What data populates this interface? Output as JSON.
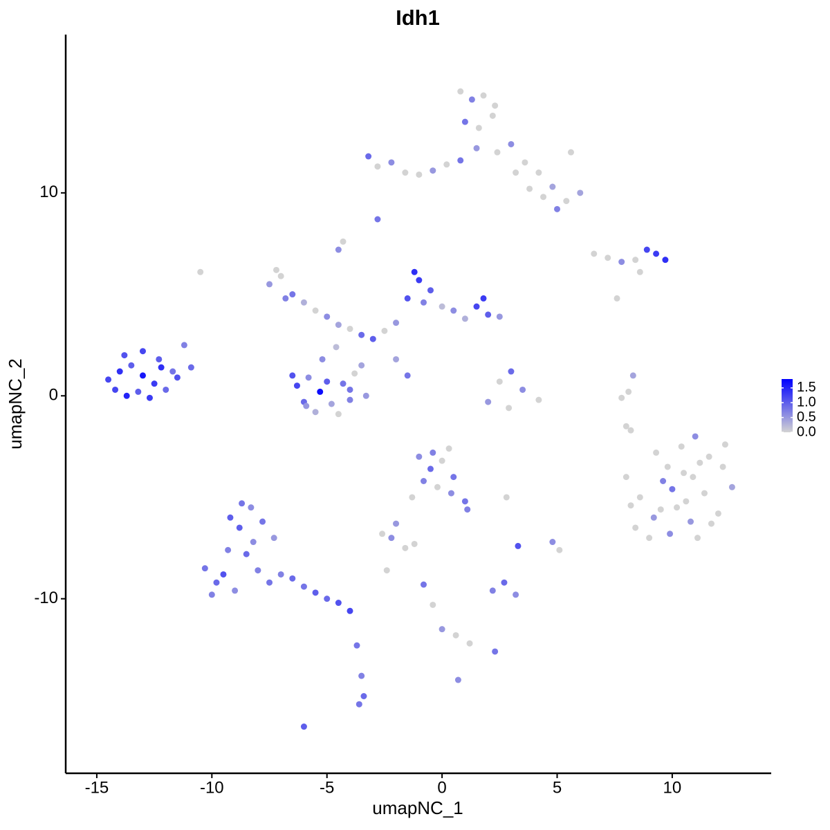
{
  "chart_data": {
    "type": "scatter",
    "title": "Idh1",
    "x_label": "umapNC_1",
    "y_label": "umapNC_2",
    "xlim": [
      -16.35,
      14.3
    ],
    "ylim": [
      -18.6,
      17.8
    ],
    "xticks": [
      -15,
      -10,
      -5,
      0,
      5,
      10
    ],
    "yticks": [
      -10,
      0,
      10
    ],
    "color_low": "#d3d3d3",
    "color_high": "#0000ff",
    "colorbar_lim": [
      0,
      1.8
    ],
    "colorbar_ticks": [
      {
        "value": 0,
        "label": "0.0"
      },
      0.5,
      {
        "value": 1,
        "label": "1.0"
      },
      1.5
    ],
    "x": [
      -14.5,
      -14.0,
      -13.5,
      -13.0,
      -12.5,
      -12.0,
      -11.5,
      -14.2,
      -13.7,
      -13.2,
      -12.7,
      -12.2,
      -11.7,
      -13.8,
      -13.0,
      -12.3,
      -11.2,
      -10.9,
      -6.3,
      -5.8,
      -5.3,
      -4.8,
      -4.3,
      -3.8,
      -3.3,
      -6.0,
      -5.5,
      -5.0,
      -4.5,
      -4.0,
      -3.5,
      -5.2,
      -4.6,
      -4.0,
      -6.5,
      -5.9,
      -7.5,
      -7.0,
      -6.5,
      -6.0,
      -5.5,
      -5.0,
      -4.5,
      -4.0,
      -3.5,
      -3.0,
      -2.5,
      -2.0,
      -1.5,
      -1.0,
      -0.5,
      -1.2,
      -0.8,
      0.0,
      0.5,
      1.0,
      1.5,
      2.0,
      2.5,
      1.8,
      -2.0,
      -1.5,
      -4.5,
      -4.3,
      -7.2,
      -6.8,
      0.8,
      1.3,
      1.8,
      2.3,
      1.0,
      1.6,
      2.2,
      1.5,
      2.4,
      3.0,
      3.6,
      4.2,
      4.8,
      5.4,
      5.0,
      4.4,
      3.8,
      3.2,
      -3.2,
      -2.8,
      -2.2,
      -1.6,
      -1.0,
      -0.4,
      0.2,
      0.8,
      5.6,
      6.0,
      8.0,
      8.6,
      9.2,
      9.8,
      10.4,
      11.0,
      11.6,
      12.2,
      12.6,
      8.4,
      9.0,
      9.6,
      10.2,
      10.8,
      11.4,
      12.0,
      9.3,
      9.9,
      10.5,
      11.1,
      11.7,
      12.3,
      10.0,
      10.6,
      11.2,
      8.2,
      9.5,
      10.9,
      -10.3,
      -9.8,
      -9.3,
      -8.8,
      -8.3,
      -7.8,
      -7.3,
      -10.0,
      -9.5,
      -9.0,
      -8.5,
      -8.0,
      -7.5,
      -9.2,
      -8.7,
      -8.2,
      -7.0,
      -6.5,
      -6.0,
      -5.5,
      -5.0,
      -4.5,
      -4.0,
      -3.7,
      -3.5,
      -3.4,
      -3.6,
      -6.0,
      -1.0,
      -0.5,
      0.0,
      0.5,
      -0.8,
      -0.2,
      0.4,
      1.0,
      1.1,
      -1.3,
      -2.0,
      -2.6,
      -2.2,
      -1.6,
      0.3,
      -0.4,
      2.5,
      3.0,
      3.5,
      2.9,
      2.0,
      4.2,
      2.2,
      2.7,
      3.2,
      -0.8,
      -0.4,
      0.0,
      0.6,
      1.2,
      2.3,
      3.3,
      4.8,
      5.1,
      -1.2,
      -2.4,
      2.8,
      0.7,
      6.6,
      7.2,
      7.8,
      8.4,
      8.9,
      9.3,
      9.7,
      8.6,
      7.6,
      7.8,
      8.3,
      8.1,
      8.0,
      8.2,
      -10.5,
      -2.8
    ],
    "y": [
      0.8,
      1.2,
      1.5,
      1.0,
      0.6,
      0.3,
      0.9,
      0.3,
      0.0,
      0.2,
      -0.1,
      1.4,
      1.2,
      2.0,
      2.2,
      1.8,
      2.5,
      1.4,
      0.5,
      0.9,
      0.2,
      -0.4,
      0.6,
      1.1,
      0.0,
      -0.3,
      -0.8,
      0.7,
      -0.9,
      -0.2,
      1.5,
      1.8,
      2.4,
      0.3,
      1.0,
      -0.5,
      5.5,
      5.9,
      5.0,
      4.6,
      4.2,
      3.9,
      3.5,
      3.3,
      3.0,
      2.8,
      3.2,
      3.6,
      4.8,
      5.7,
      5.2,
      6.1,
      4.6,
      4.4,
      4.2,
      3.8,
      4.4,
      4.0,
      3.9,
      4.8,
      1.8,
      1.0,
      7.2,
      7.6,
      6.2,
      4.8,
      15.0,
      14.6,
      14.8,
      14.3,
      13.5,
      13.2,
      13.8,
      12.2,
      12.0,
      12.4,
      11.5,
      11.0,
      10.3,
      9.6,
      9.2,
      9.8,
      10.2,
      11.0,
      11.8,
      11.3,
      11.5,
      11.0,
      10.9,
      11.1,
      11.4,
      11.6,
      12.0,
      10.0,
      -4.0,
      -5.0,
      -6.0,
      -3.5,
      -2.5,
      -2.0,
      -3.0,
      -3.5,
      -4.5,
      -6.5,
      -7.0,
      -4.2,
      -5.5,
      -6.2,
      -4.8,
      -5.8,
      -2.8,
      -6.8,
      -3.8,
      -7.0,
      -6.3,
      -2.4,
      -4.6,
      -5.2,
      -3.3,
      -5.4,
      -5.6,
      -4.0,
      -8.5,
      -9.2,
      -7.6,
      -6.5,
      -5.5,
      -6.2,
      -7.0,
      -9.8,
      -8.8,
      -9.6,
      -7.8,
      -8.6,
      -9.2,
      -6.0,
      -5.3,
      -7.2,
      -8.8,
      -9.0,
      -9.4,
      -9.7,
      -10.0,
      -10.2,
      -10.6,
      -12.3,
      -13.8,
      -14.8,
      -15.2,
      -16.3,
      -3.0,
      -3.6,
      -3.2,
      -4.0,
      -4.2,
      -4.5,
      -4.8,
      -5.2,
      -5.6,
      -5.0,
      -6.3,
      -6.8,
      -7.0,
      -7.5,
      -2.6,
      -2.8,
      0.7,
      1.2,
      0.3,
      -0.6,
      -0.3,
      -0.2,
      -9.6,
      -9.2,
      -9.8,
      -9.3,
      -10.3,
      -11.5,
      -11.8,
      -12.2,
      -12.6,
      -7.4,
      -7.2,
      -7.6,
      -7.3,
      -8.6,
      -5.0,
      -14.0,
      7.0,
      6.8,
      6.6,
      6.7,
      7.2,
      7.0,
      6.7,
      6.1,
      4.8,
      -0.1,
      1.0,
      0.2,
      -1.5,
      -1.7,
      6.1,
      8.7
    ],
    "values": [
      1.2,
      1.4,
      1.0,
      1.6,
      1.3,
      0.9,
      1.1,
      1.2,
      1.5,
      1.0,
      1.3,
      1.4,
      0.8,
      1.1,
      1.2,
      1.0,
      0.7,
      0.9,
      1.2,
      0.6,
      1.7,
      0.4,
      0.8,
      0.0,
      0.5,
      0.9,
      0.3,
      1.0,
      0.0,
      0.7,
      0.4,
      0.6,
      0.2,
      0.8,
      1.1,
      0.5,
      0.5,
      0.0,
      0.8,
      0.3,
      0.0,
      0.6,
      0.4,
      0.0,
      0.9,
      1.0,
      0.0,
      0.5,
      1.1,
      1.3,
      1.0,
      1.4,
      0.7,
      0.2,
      0.6,
      0.3,
      1.2,
      1.0,
      0.5,
      1.3,
      0.4,
      0.8,
      0.6,
      0.0,
      0.0,
      0.7,
      0.0,
      0.7,
      0.0,
      0.0,
      0.8,
      0.0,
      0.0,
      0.5,
      0.0,
      0.6,
      0.0,
      0.0,
      0.4,
      0.0,
      0.7,
      0.0,
      0.0,
      0.0,
      0.9,
      0.0,
      0.6,
      0.0,
      0.0,
      0.5,
      0.0,
      0.8,
      0.0,
      0.4,
      0,
      0,
      0.5,
      0,
      0,
      0.6,
      0,
      0,
      0.4,
      0,
      0,
      0.7,
      0,
      0.5,
      0,
      0,
      0,
      0.6,
      0,
      0,
      0,
      0,
      0.8,
      0,
      0,
      0,
      0,
      0,
      0.8,
      0.9,
      0.7,
      1.0,
      0.6,
      0.8,
      0.5,
      0.7,
      1.1,
      0.6,
      0.9,
      0.7,
      0.8,
      1.0,
      0.8,
      0.6,
      0.7,
      0.9,
      0.8,
      1.0,
      0.9,
      1.1,
      1.2,
      0.8,
      0.7,
      0.9,
      0.8,
      1.0,
      0.6,
      0.9,
      0.0,
      0.8,
      0.7,
      0.0,
      0.6,
      0.8,
      0.7,
      0.0,
      0.5,
      0.0,
      0.6,
      0.0,
      0.0,
      0.7,
      0.0,
      0.9,
      0.6,
      0.0,
      0.5,
      0.0,
      0.7,
      0.9,
      0.6,
      0.8,
      0.0,
      0.5,
      0.0,
      0.0,
      0.8,
      1.1,
      0.6,
      0.0,
      0.0,
      0.0,
      0.0,
      0.6,
      0,
      0,
      0.6,
      0,
      1.2,
      1.3,
      1.4,
      0,
      0,
      0,
      0.4,
      0,
      0,
      0,
      0,
      0.8
    ]
  }
}
